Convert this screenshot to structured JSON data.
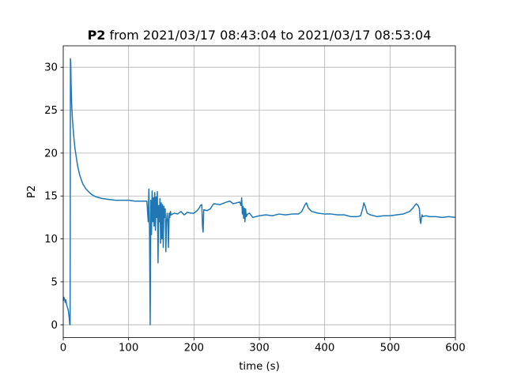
{
  "chart_data": {
    "type": "line",
    "title": {
      "bold": "P2",
      "rest": " from 2021/03/17 08:43:04 to 2021/03/17 08:53:04"
    },
    "xlabel": "time (s)",
    "ylabel": "P2",
    "xlim": [
      0,
      600
    ],
    "ylim": [
      -1.5,
      32.5
    ],
    "xticks": [
      0,
      100,
      200,
      300,
      400,
      500,
      600
    ],
    "yticks": [
      0,
      5,
      10,
      15,
      20,
      25,
      30
    ],
    "grid": true,
    "line_color": "#1f77b4",
    "series": [
      {
        "x": [
          0,
          1,
          2,
          3,
          4,
          5,
          6,
          7,
          8,
          9,
          10,
          10.5,
          11,
          11.5,
          12,
          13,
          14,
          15,
          16,
          18,
          20,
          22,
          25,
          28,
          30,
          35,
          40,
          45,
          50,
          55,
          60,
          70,
          80,
          90,
          100,
          110,
          120,
          128,
          130,
          131,
          132,
          133,
          134,
          135,
          136,
          137,
          138,
          139,
          140,
          141,
          142,
          143,
          144,
          145,
          146,
          147,
          148,
          149,
          150,
          151,
          152,
          153,
          154,
          155,
          156,
          157,
          158,
          159,
          160,
          161,
          162,
          163,
          164,
          165,
          170,
          175,
          180,
          185,
          190,
          195,
          200,
          205,
          208,
          210,
          212,
          213,
          214,
          215,
          220,
          225,
          230,
          240,
          250,
          255,
          260,
          265,
          270,
          272,
          273,
          274,
          275,
          276,
          277,
          278,
          279,
          280,
          282,
          285,
          290,
          295,
          300,
          310,
          320,
          330,
          340,
          350,
          360,
          365,
          370,
          372,
          375,
          380,
          390,
          400,
          410,
          420,
          430,
          440,
          450,
          455,
          458,
          460,
          462,
          465,
          470,
          480,
          490,
          500,
          510,
          520,
          530,
          535,
          540,
          543,
          545,
          546,
          547,
          548,
          549,
          550,
          555,
          560,
          570,
          580,
          590,
          600
        ],
        "y": [
          2.8,
          3.2,
          3.0,
          2.6,
          2.9,
          2.4,
          2.1,
          1.9,
          1.5,
          0.9,
          0.0,
          0.0,
          31.0,
          30.5,
          28.0,
          25.5,
          24.0,
          23.0,
          22.0,
          20.5,
          19.5,
          18.5,
          17.5,
          16.8,
          16.4,
          15.8,
          15.4,
          15.1,
          14.9,
          14.8,
          14.7,
          14.6,
          14.5,
          14.5,
          14.5,
          14.4,
          14.4,
          14.4,
          12.0,
          15.8,
          11.0,
          0.0,
          14.5,
          10.5,
          15.6,
          12.0,
          14.8,
          11.5,
          15.4,
          11.0,
          14.9,
          12.5,
          15.5,
          7.2,
          13.9,
          12.0,
          14.7,
          9.5,
          14.2,
          10.0,
          14.0,
          9.0,
          13.8,
          12.5,
          13.5,
          8.5,
          12.0,
          13.0,
          12.2,
          9.0,
          13.0,
          12.5,
          13.2,
          12.8,
          13.0,
          12.9,
          13.2,
          12.8,
          13.1,
          13.0,
          13.0,
          13.3,
          13.6,
          13.9,
          14.0,
          11.5,
          10.8,
          13.4,
          13.3,
          13.5,
          14.1,
          14.0,
          14.3,
          14.4,
          14.1,
          14.2,
          14.3,
          13.9,
          14.8,
          12.9,
          13.8,
          12.4,
          13.6,
          12.0,
          13.5,
          12.6,
          12.9,
          13.0,
          12.5,
          12.6,
          12.7,
          12.8,
          12.7,
          12.9,
          12.8,
          12.9,
          12.9,
          13.2,
          14.0,
          14.2,
          13.6,
          13.2,
          13.0,
          12.9,
          12.9,
          12.8,
          12.8,
          12.6,
          12.6,
          12.7,
          13.5,
          14.2,
          13.8,
          13.0,
          12.8,
          12.6,
          12.7,
          12.7,
          12.8,
          12.9,
          13.2,
          13.6,
          14.1,
          13.9,
          13.5,
          12.2,
          11.8,
          12.4,
          12.8,
          12.6,
          12.7,
          12.6,
          12.6,
          12.5,
          12.6,
          12.5
        ]
      }
    ]
  }
}
